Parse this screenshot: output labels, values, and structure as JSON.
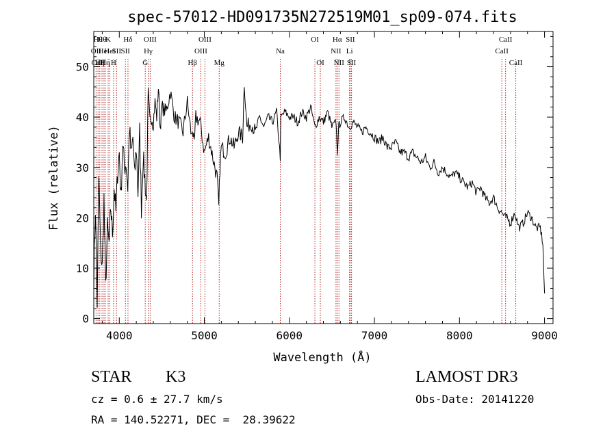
{
  "chart_data": {
    "type": "line",
    "title": "spec-57012-HD091735N272519M01_sp09-074.fits",
    "xlabel": "Wavelength (Å)",
    "ylabel": "Flux (relative)",
    "xlim": [
      3700,
      9100
    ],
    "ylim": [
      -1,
      57
    ],
    "xticks": [
      4000,
      5000,
      6000,
      7000,
      8000,
      9000
    ],
    "yticks": [
      0,
      10,
      20,
      30,
      40,
      50
    ],
    "grid": false,
    "line_color": "#000000",
    "marker_color": "#b22222",
    "series": [
      {
        "x": [
          3700,
          3720,
          3740,
          3760,
          3780,
          3800,
          3820,
          3840,
          3860,
          3880,
          3900,
          3920,
          3940,
          3960,
          3980,
          4000,
          4020,
          4040,
          4060,
          4080,
          4100,
          4120,
          4140,
          4160,
          4180,
          4200,
          4220,
          4240,
          4260,
          4280,
          4300,
          4320,
          4340,
          4360,
          4380,
          4400,
          4420,
          4440,
          4460,
          4480,
          4500,
          4550,
          4600,
          4650,
          4700,
          4750,
          4800,
          4850,
          4860,
          4880,
          4900,
          4950,
          5000,
          5050,
          5100,
          5150,
          5170,
          5184,
          5200,
          5250,
          5300,
          5350,
          5400,
          5450,
          5470,
          5500,
          5550,
          5600,
          5650,
          5700,
          5750,
          5800,
          5850,
          5893,
          5900,
          5950,
          6000,
          6050,
          6100,
          6150,
          6200,
          6250,
          6300,
          6350,
          6400,
          6450,
          6500,
          6550,
          6563,
          6580,
          6600,
          6650,
          6700,
          6750,
          6800,
          6850,
          6900,
          6950,
          7000,
          7050,
          7100,
          7150,
          7200,
          7250,
          7300,
          7350,
          7400,
          7450,
          7500,
          7550,
          7600,
          7650,
          7700,
          7750,
          7800,
          7850,
          7900,
          7950,
          8000,
          8050,
          8100,
          8150,
          8200,
          8250,
          8300,
          8350,
          8400,
          8450,
          8500,
          8542,
          8550,
          8600,
          8650,
          8700,
          8750,
          8800,
          8850,
          8900,
          8950,
          8980,
          9000
        ],
        "y": [
          8,
          22,
          3,
          28,
          14,
          10,
          24,
          6,
          18,
          15,
          22,
          17,
          26,
          21,
          29,
          33,
          24,
          35,
          30,
          31,
          26,
          38,
          32,
          36,
          28,
          34,
          25,
          37,
          22,
          32,
          28,
          23,
          44,
          38,
          41,
          39,
          43,
          40,
          46,
          38,
          42,
          41,
          45,
          40,
          39,
          37,
          43,
          36,
          38,
          34,
          40,
          39,
          33,
          36,
          32,
          28,
          22,
          30,
          34,
          33,
          36,
          34,
          37,
          36,
          47,
          38,
          39,
          37,
          40,
          38,
          40,
          39,
          41,
          32,
          40,
          41,
          40,
          40,
          39,
          41,
          40,
          42,
          38,
          40,
          39,
          41,
          38,
          39,
          33,
          38,
          39,
          40,
          38,
          39,
          38,
          37,
          38,
          37,
          36,
          35,
          36,
          34,
          34,
          35,
          33,
          33,
          32,
          33,
          32,
          31,
          32,
          30,
          31,
          29,
          30,
          29,
          28,
          29,
          28,
          27,
          26,
          27,
          25,
          26,
          24,
          23,
          24,
          22,
          21,
          20,
          20,
          19,
          21,
          18,
          19,
          21,
          20,
          18,
          18,
          15,
          5
        ]
      }
    ],
    "lines": [
      {
        "x": 3727,
        "labels": [
          "OII"
        ],
        "rows": [
          1
        ]
      },
      {
        "x": 3750,
        "labels": [
          "Hθ",
          "CaII"
        ],
        "rows": [
          0,
          2
        ]
      },
      {
        "x": 3771,
        "labels": [
          "Hη"
        ],
        "rows": [
          2
        ]
      },
      {
        "x": 3797,
        "labels": [
          "Hθ"
        ],
        "rows": [
          0
        ]
      },
      {
        "x": 3820,
        "labels": [
          "HeI"
        ],
        "rows": [
          1
        ]
      },
      {
        "x": 3835,
        "labels": [
          "Hη"
        ],
        "rows": [
          2
        ]
      },
      {
        "x": 3869,
        "labels": [
          "K"
        ],
        "rows": [
          0
        ]
      },
      {
        "x": 3889,
        "labels": [
          "HeI"
        ],
        "rows": [
          1
        ]
      },
      {
        "x": 3933,
        "labels": [
          "H"
        ],
        "rows": [
          2
        ]
      },
      {
        "x": 3968,
        "labels": [
          "SII"
        ],
        "rows": [
          1
        ]
      },
      {
        "x": 4072,
        "labels": [
          "SII"
        ],
        "rows": [
          1
        ]
      },
      {
        "x": 4102,
        "labels": [
          "Hδ"
        ],
        "rows": [
          0
        ]
      },
      {
        "x": 4305,
        "labels": [
          "G"
        ],
        "rows": [
          2
        ]
      },
      {
        "x": 4340,
        "labels": [
          "Hγ"
        ],
        "rows": [
          1
        ]
      },
      {
        "x": 4363,
        "labels": [
          "OIII"
        ],
        "rows": [
          0
        ]
      },
      {
        "x": 4861,
        "labels": [
          "Hβ"
        ],
        "rows": [
          2
        ]
      },
      {
        "x": 4959,
        "labels": [
          "OIII"
        ],
        "rows": [
          1
        ]
      },
      {
        "x": 5007,
        "labels": [
          "OIII"
        ],
        "rows": [
          0
        ]
      },
      {
        "x": 5175,
        "labels": [
          "Mg"
        ],
        "rows": [
          2
        ]
      },
      {
        "x": 5893,
        "labels": [
          "Na"
        ],
        "rows": [
          1
        ]
      },
      {
        "x": 6300,
        "labels": [
          "OI"
        ],
        "rows": [
          0
        ]
      },
      {
        "x": 6364,
        "labels": [
          "OI"
        ],
        "rows": [
          2
        ]
      },
      {
        "x": 6548,
        "labels": [
          "NII"
        ],
        "rows": [
          1
        ]
      },
      {
        "x": 6563,
        "labels": [
          "Hα"
        ],
        "rows": [
          0
        ]
      },
      {
        "x": 6583,
        "labels": [
          "NII"
        ],
        "rows": [
          2
        ]
      },
      {
        "x": 6707,
        "labels": [
          "Li"
        ],
        "rows": [
          1
        ]
      },
      {
        "x": 6717,
        "labels": [
          "SII"
        ],
        "rows": [
          0
        ]
      },
      {
        "x": 6731,
        "labels": [
          "SII"
        ],
        "rows": [
          2
        ]
      },
      {
        "x": 8498,
        "labels": [
          "CaII"
        ],
        "rows": [
          1
        ]
      },
      {
        "x": 8542,
        "labels": [
          "CaII"
        ],
        "rows": [
          0
        ]
      },
      {
        "x": 8662,
        "labels": [
          "CaII"
        ],
        "rows": [
          2
        ]
      }
    ]
  },
  "info": {
    "object_type": "STAR",
    "subclass": "K3",
    "redshift": "cz = 0.6 ± 27.7 km/s",
    "coords": "RA = 140.52271, DEC =  28.39622",
    "survey": "LAMOST DR3",
    "obs_date": "Obs-Date: 20141220"
  }
}
